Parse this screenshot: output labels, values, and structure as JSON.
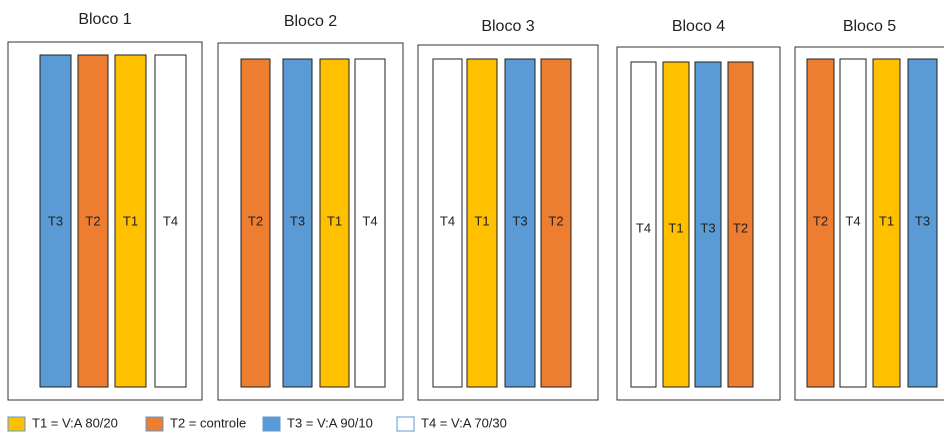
{
  "blocks": [
    {
      "title": "Bloco 1",
      "plots": [
        {
          "label": "T3",
          "color": "#5b9bd5"
        },
        {
          "label": "T2",
          "color": "#ed7d31"
        },
        {
          "label": "T1",
          "color": "#ffc000"
        },
        {
          "label": "T4",
          "color": "#ffffff"
        }
      ]
    },
    {
      "title": "Bloco 2",
      "plots": [
        {
          "label": "T2",
          "color": "#ed7d31"
        },
        {
          "label": "T3",
          "color": "#5b9bd5"
        },
        {
          "label": "T1",
          "color": "#ffc000"
        },
        {
          "label": "T4",
          "color": "#ffffff"
        }
      ]
    },
    {
      "title": "Bloco 3",
      "plots": [
        {
          "label": "T4",
          "color": "#ffffff"
        },
        {
          "label": "T1",
          "color": "#ffc000"
        },
        {
          "label": "T3",
          "color": "#5b9bd5"
        },
        {
          "label": "T2",
          "color": "#ed7d31"
        }
      ]
    },
    {
      "title": "Bloco 4",
      "plots": [
        {
          "label": "T4",
          "color": "#ffffff"
        },
        {
          "label": "T1",
          "color": "#ffc000"
        },
        {
          "label": "T3",
          "color": "#5b9bd5"
        },
        {
          "label": "T2",
          "color": "#ed7d31"
        }
      ]
    },
    {
      "title": "Bloco 5",
      "plots": [
        {
          "label": "T2",
          "color": "#ed7d31"
        },
        {
          "label": "T4",
          "color": "#ffffff"
        },
        {
          "label": "T1",
          "color": "#ffc000"
        },
        {
          "label": "T3",
          "color": "#5b9bd5"
        }
      ]
    }
  ],
  "legend": [
    {
      "text": "T1 = V:A 80/20",
      "color": "#ffc000"
    },
    {
      "text": "T2 = controle",
      "color": "#ed7d31"
    },
    {
      "text": "T3 = V:A 90/10",
      "color": "#5b9bd5"
    },
    {
      "text": "T4 = V:A 70/30",
      "color": "#ffffff"
    }
  ]
}
